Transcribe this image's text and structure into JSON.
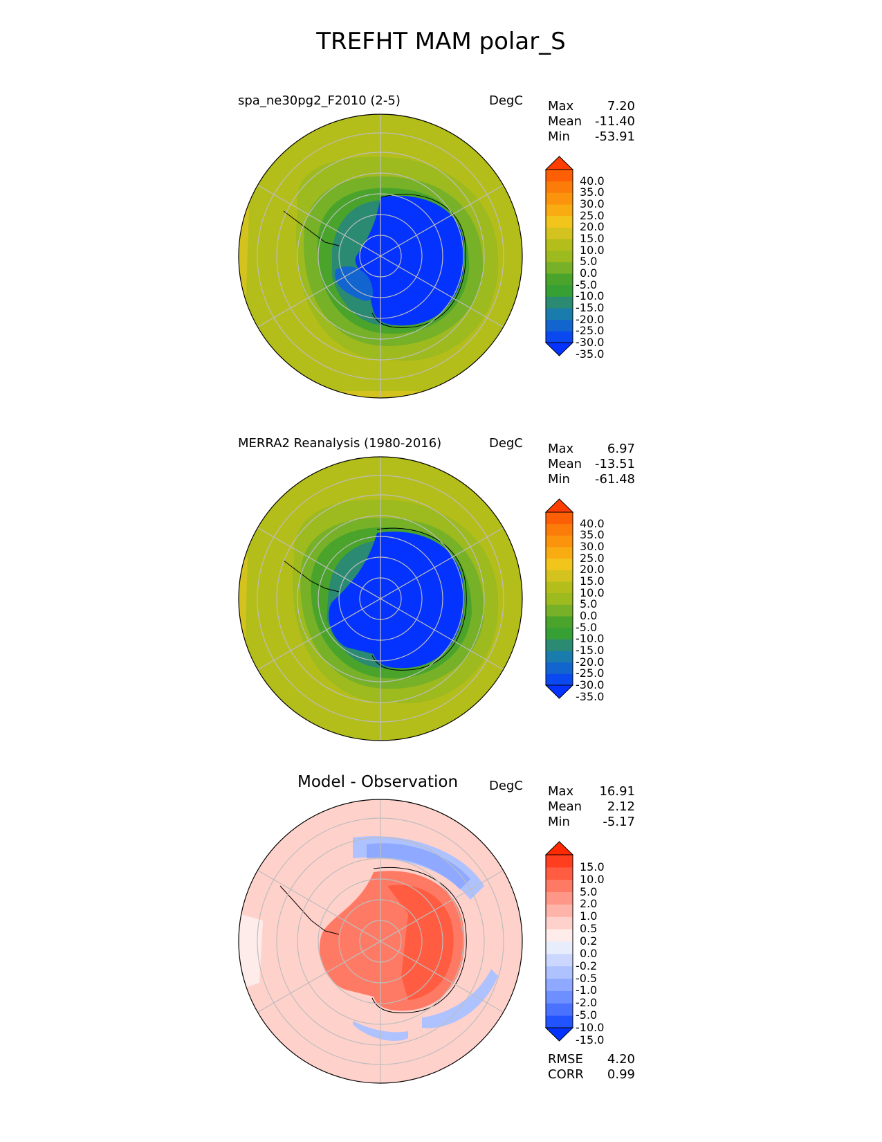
{
  "figure": {
    "title": "TREFHT MAM polar_S"
  },
  "panels": [
    {
      "id": "test",
      "title": "spa_ne30pg2_F2010 (2-5)",
      "units": "DegC",
      "stats": [
        {
          "label": "Max",
          "value": "7.20"
        },
        {
          "label": "Mean",
          "value": "-11.40"
        },
        {
          "label": "Min",
          "value": "-53.91"
        }
      ],
      "colorbar": {
        "ticks": [
          "40.0",
          "35.0",
          "30.0",
          "25.0",
          "20.0",
          "15.0",
          "10.0",
          "5.0",
          "0.0",
          "-5.0",
          "-10.0",
          "-15.0",
          "-20.0",
          "-25.0",
          "-30.0",
          "-35.0"
        ],
        "colors": [
          "#0433ff",
          "#0a48f0",
          "#1264cf",
          "#1a7cac",
          "#2a8a72",
          "#37a035",
          "#4aa42b",
          "#76b127",
          "#9dba1f",
          "#b4be1a",
          "#d4c31e",
          "#f2c51c",
          "#f9ab12",
          "#fb930d",
          "#fc7c0a",
          "#fd5f06",
          "#ff3d00"
        ]
      }
    },
    {
      "id": "ref",
      "title": "MERRA2 Reanalysis (1980-2016)",
      "units": "DegC",
      "stats": [
        {
          "label": "Max",
          "value": "6.97"
        },
        {
          "label": "Mean",
          "value": "-13.51"
        },
        {
          "label": "Min",
          "value": "-61.48"
        }
      ],
      "colorbar": {
        "ticks": [
          "40.0",
          "35.0",
          "30.0",
          "25.0",
          "20.0",
          "15.0",
          "10.0",
          "5.0",
          "0.0",
          "-5.0",
          "-10.0",
          "-15.0",
          "-20.0",
          "-25.0",
          "-30.0",
          "-35.0"
        ],
        "colors": [
          "#0433ff",
          "#0a48f0",
          "#1264cf",
          "#1a7cac",
          "#2a8a72",
          "#37a035",
          "#4aa42b",
          "#76b127",
          "#9dba1f",
          "#b4be1a",
          "#d4c31e",
          "#f2c51c",
          "#f9ab12",
          "#fb930d",
          "#fc7c0a",
          "#fd5f06",
          "#ff3d00"
        ]
      }
    },
    {
      "id": "diff",
      "title": "Model - Observation",
      "units": "DegC",
      "stats": [
        {
          "label": "Max",
          "value": "16.91"
        },
        {
          "label": "Mean",
          "value": "2.12"
        },
        {
          "label": "Min",
          "value": "-5.17"
        }
      ],
      "metrics": [
        {
          "label": "RMSE",
          "value": "4.20"
        },
        {
          "label": "CORR",
          "value": "0.99"
        }
      ],
      "colorbar": {
        "ticks": [
          "15.0",
          "10.0",
          "5.0",
          "2.0",
          "1.0",
          "0.5",
          "0.2",
          "0.0",
          "-0.2",
          "-0.5",
          "-1.0",
          "-2.0",
          "-5.0",
          "-10.0",
          "-15.0"
        ],
        "colors": [
          "#0433ff",
          "#2154ff",
          "#4a72ff",
          "#6d8fff",
          "#8ea9ff",
          "#aec2ff",
          "#cbd7ff",
          "#e8edfb",
          "#fdecea",
          "#ffd1cb",
          "#ffb4a9",
          "#ff9788",
          "#ff7a65",
          "#ff5c42",
          "#ff3d1f",
          "#ff2a00"
        ]
      }
    }
  ]
}
